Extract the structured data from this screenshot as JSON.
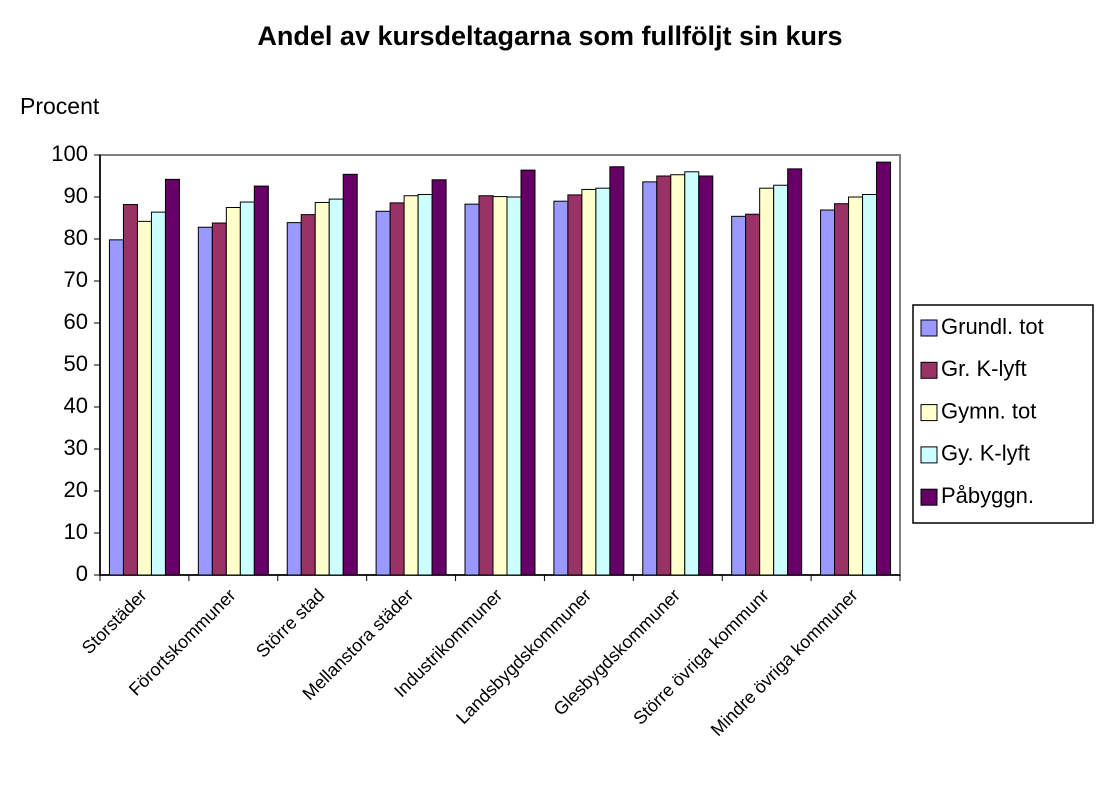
{
  "chart_data": {
    "type": "bar",
    "title": "Andel av kursdeltagarna som fullföljt sin kurs",
    "y_label": "Procent",
    "categories": [
      "Storstäder",
      "Förortskommuner",
      "Större stad",
      "Mellanstora städer",
      "Industrikommuner",
      "Landsbygdskommuner",
      "Glesbygdskommuner",
      "Större övriga kommunr",
      "Mindre övriga kommuner"
    ],
    "series": [
      {
        "name": "Grundl. tot",
        "color": "#9999ff",
        "values": [
          79.8,
          82.8,
          83.9,
          86.6,
          88.3,
          89.0,
          93.6,
          85.4,
          86.9
        ]
      },
      {
        "name": "Gr. K-lyft",
        "color": "#993366",
        "values": [
          88.2,
          83.8,
          85.8,
          88.6,
          90.3,
          90.5,
          95.0,
          85.9,
          88.4
        ]
      },
      {
        "name": "Gymn. tot",
        "color": "#ffffcc",
        "values": [
          84.2,
          87.5,
          88.7,
          90.3,
          90.1,
          91.8,
          95.3,
          92.1,
          90.0
        ]
      },
      {
        "name": "Gy. K-lyft",
        "color": "#ccffff",
        "values": [
          86.4,
          88.8,
          89.5,
          90.6,
          90.0,
          92.1,
          96.0,
          92.8,
          90.6
        ]
      },
      {
        "name": "Påbyggn.",
        "color": "#660066",
        "values": [
          94.2,
          92.6,
          95.4,
          94.1,
          96.4,
          97.2,
          95.0,
          96.7,
          98.3
        ]
      }
    ],
    "ylim": [
      0,
      100
    ],
    "yticks": [
      0,
      10,
      20,
      30,
      40,
      50,
      60,
      70,
      80,
      90,
      100
    ],
    "grid": false,
    "legend": "right"
  }
}
